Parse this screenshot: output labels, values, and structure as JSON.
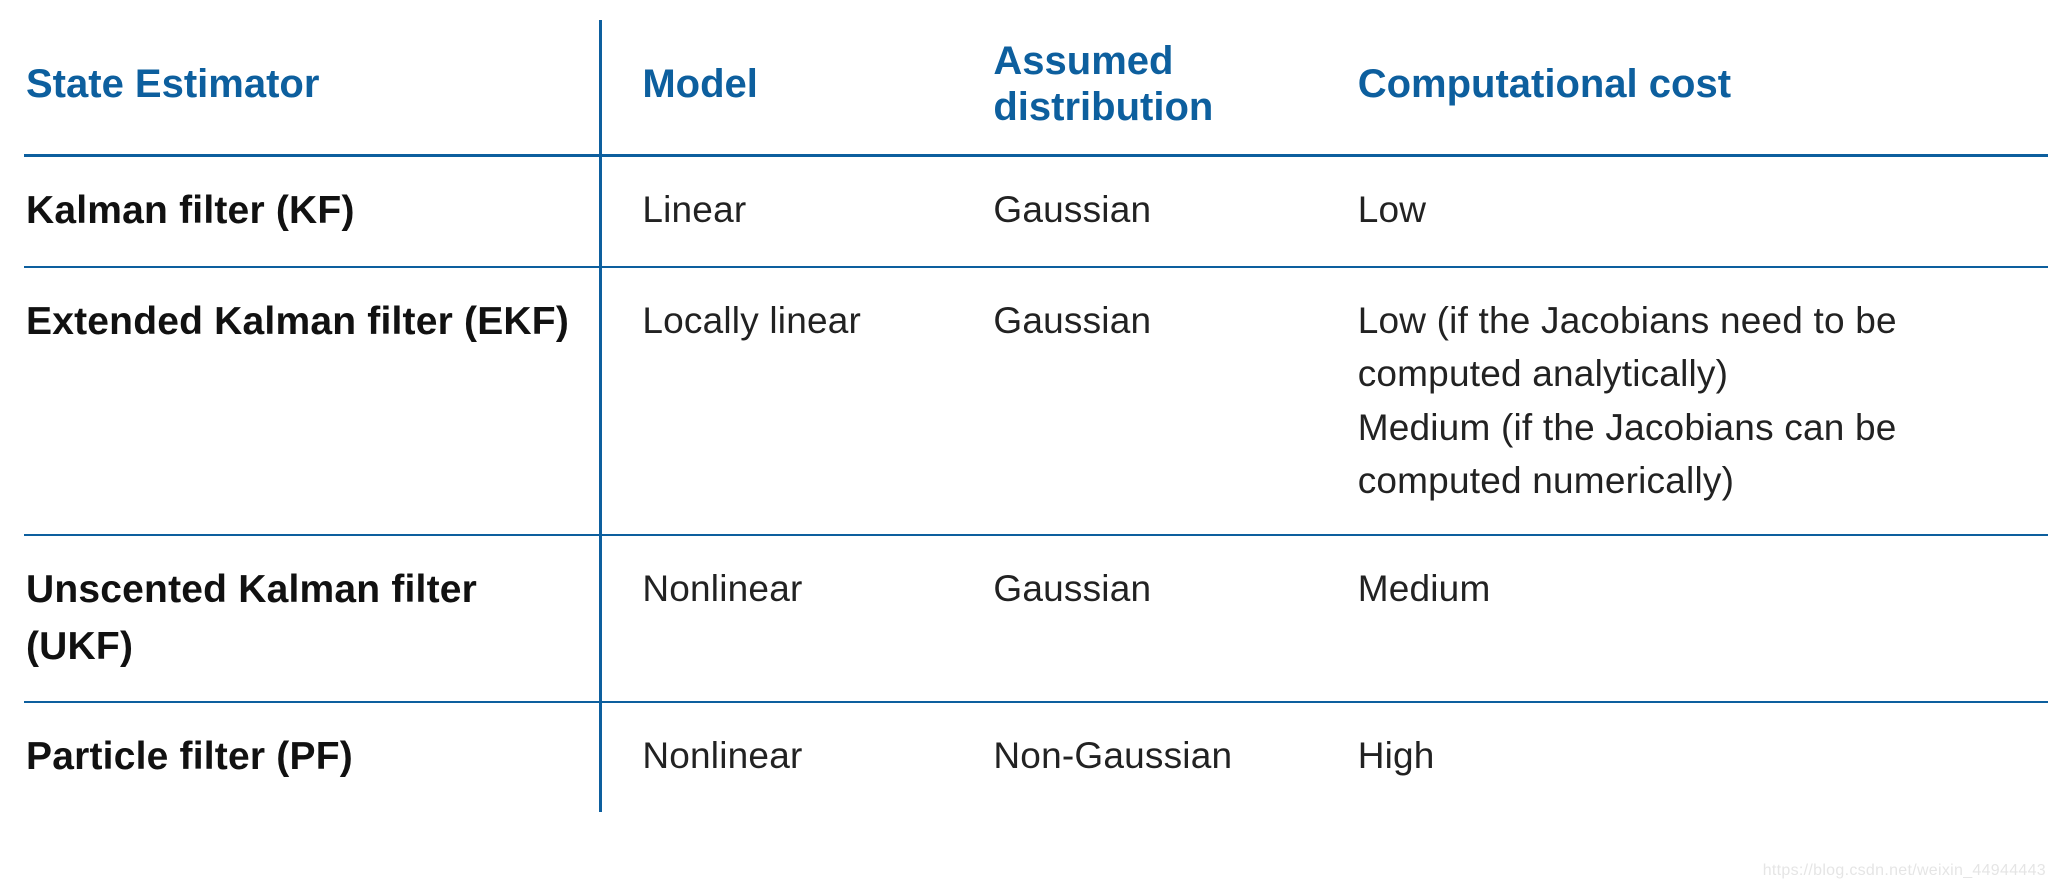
{
  "table": {
    "type": "table",
    "header_color": "#0d5f9e",
    "border_color": "#0d5f9e",
    "background_color": "#ffffff",
    "header_fontsize_pt": 30,
    "rowhead_fontsize_pt": 29,
    "cell_fontsize_pt": 28,
    "header_font_weight": 700,
    "rowhead_font_weight": 700,
    "cell_font_weight": 400,
    "column_widths_pct": [
      28.5,
      19,
      18,
      34.5
    ],
    "vertical_divider_after_col": 0,
    "columns": [
      "State Estimator",
      "Model",
      "Assumed distribution",
      "Computational cost"
    ],
    "rows": [
      {
        "estimator": "Kalman filter (KF)",
        "model": "Linear",
        "distribution": "Gaussian",
        "cost": "Low"
      },
      {
        "estimator": "Extended Kalman filter (EKF)",
        "model": "Locally linear",
        "distribution": "Gaussian",
        "cost": "Low (if the Jacobians need to be computed analytically)\nMedium (if the Jacobians can be computed numerically)"
      },
      {
        "estimator": "Unscented Kalman filter (UKF)",
        "model": "Nonlinear",
        "distribution": "Gaussian",
        "cost": "Medium"
      },
      {
        "estimator": "Particle filter (PF)",
        "model": "Nonlinear",
        "distribution": "Non-Gaussian",
        "cost": "High"
      }
    ]
  },
  "watermark": "https://blog.csdn.net/weixin_44944443"
}
